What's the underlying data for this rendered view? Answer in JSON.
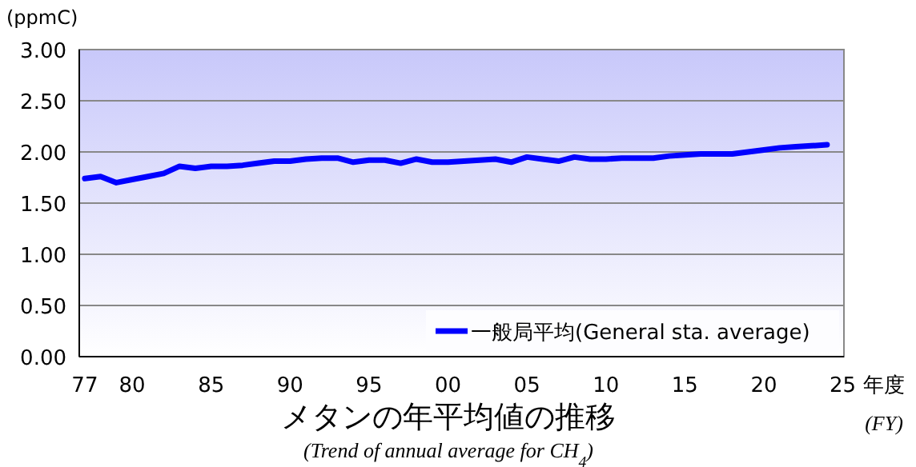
{
  "chart_data": {
    "type": "line",
    "title": "メタンの年平均値の推移",
    "subtitle": "(Trend of annual average for CH$_{4}$)",
    "xlabel": "年度",
    "ylabel": "(ppmC)",
    "annotations": [
      "(FY)"
    ],
    "x": [
      1977,
      1978,
      1979,
      1980,
      1981,
      1982,
      1983,
      1984,
      1985,
      1986,
      1987,
      1988,
      1989,
      1990,
      1991,
      1992,
      1993,
      1994,
      1995,
      1996,
      1997,
      1998,
      1999,
      2000,
      2001,
      2002,
      2003,
      2004,
      2005,
      2006,
      2007,
      2008,
      2009,
      2010,
      2011,
      2012,
      2013,
      2014,
      2015,
      2016,
      2017,
      2018,
      2019,
      2020,
      2021,
      2022,
      2023,
      2024
    ],
    "series": [
      {
        "name": "一般局平均(General sta. average)",
        "color": "#0000ff",
        "values": [
          1.74,
          1.76,
          1.7,
          1.73,
          1.76,
          1.79,
          1.86,
          1.84,
          1.86,
          1.86,
          1.87,
          1.89,
          1.91,
          1.91,
          1.93,
          1.94,
          1.94,
          1.9,
          1.92,
          1.92,
          1.89,
          1.93,
          1.9,
          1.9,
          1.91,
          1.92,
          1.93,
          1.9,
          1.95,
          1.93,
          1.91,
          1.95,
          1.93,
          1.93,
          1.94,
          1.94,
          1.94,
          1.96,
          1.97,
          1.98,
          1.98,
          1.98,
          2.0,
          2.02,
          2.04,
          2.05,
          2.06,
          2.07
        ]
      }
    ],
    "xlim": [
      1976.65,
      2025.07
    ],
    "ylim": [
      0,
      3
    ],
    "xticks": [
      {
        "value": 1977,
        "label": "77"
      },
      {
        "value": 1980,
        "label": "80"
      },
      {
        "value": 1985,
        "label": "85"
      },
      {
        "value": 1990,
        "label": "90"
      },
      {
        "value": 1995,
        "label": "95"
      },
      {
        "value": 2000,
        "label": "00"
      },
      {
        "value": 2005,
        "label": "05"
      },
      {
        "value": 2010,
        "label": "10"
      },
      {
        "value": 2015,
        "label": "15"
      },
      {
        "value": 2020,
        "label": "20"
      },
      {
        "value": 2025,
        "label": "25"
      }
    ],
    "yticks": [
      {
        "value": 0,
        "label": "0.00"
      },
      {
        "value": 0.5,
        "label": "0.50"
      },
      {
        "value": 1,
        "label": "1.00"
      },
      {
        "value": 1.5,
        "label": "1.50"
      },
      {
        "value": 2,
        "label": "2.00"
      },
      {
        "value": 2.5,
        "label": "2.50"
      },
      {
        "value": 3,
        "label": "3.00"
      }
    ],
    "grid": "y",
    "legend": "bottom right",
    "marker": "none",
    "line_style": "solid"
  }
}
